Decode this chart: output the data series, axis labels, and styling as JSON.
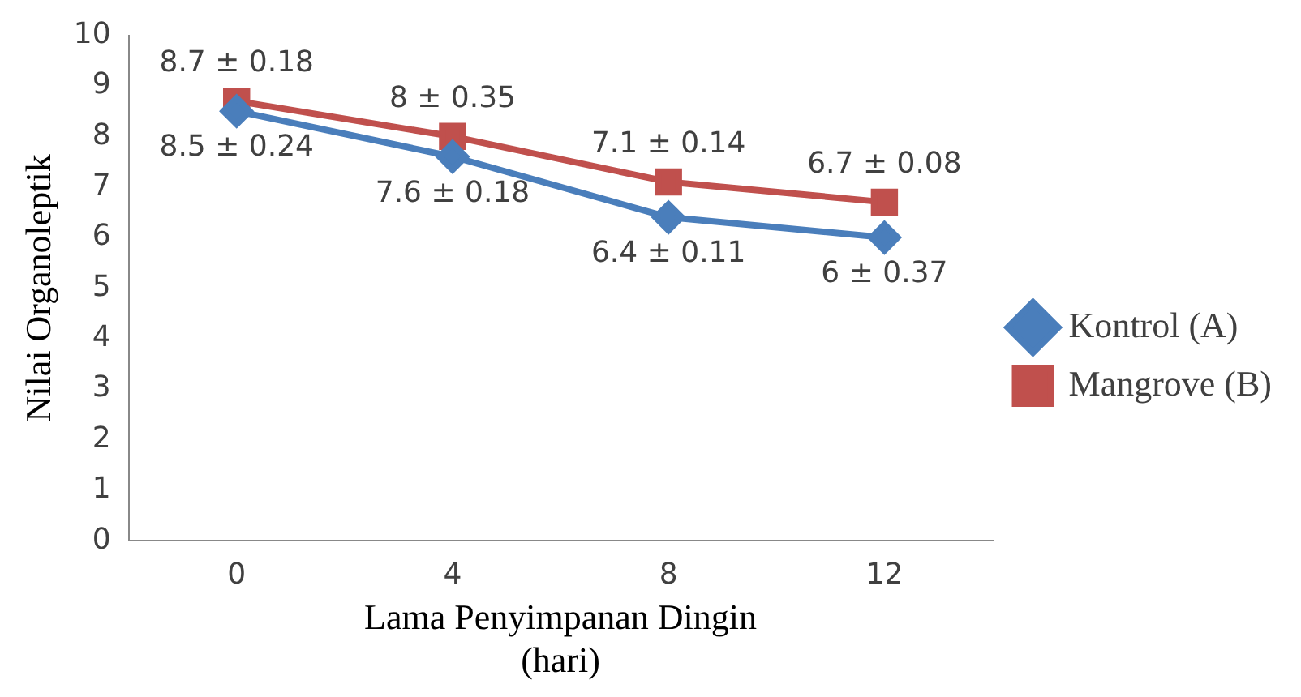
{
  "chart_data": {
    "type": "line",
    "xlabel": "Lama Penyimpanan Dingin\n(hari)",
    "ylabel": "Nilai Organoleptik",
    "categories": [
      "0",
      "4",
      "8",
      "12"
    ],
    "series": [
      {
        "name": "Kontrol (A)",
        "color": "#4a7ebb",
        "marker": "diamond",
        "values": [
          8.5,
          7.6,
          6.4,
          6
        ],
        "value_labels": [
          "8.5 ± 0.24",
          "7.6 ± 0.18",
          "6.4 ± 0.11",
          "6 ± 0.37"
        ]
      },
      {
        "name": "Mangrove (B)",
        "color": "#c0504d",
        "marker": "square",
        "values": [
          8.7,
          8,
          7.1,
          6.7
        ],
        "value_labels": [
          "8.7 ± 0.18",
          "8 ± 0.35",
          "7.1 ± 0.14",
          "6.7 ± 0.08"
        ]
      }
    ],
    "ylim": [
      0,
      10
    ],
    "yticks": [
      0,
      1,
      2,
      3,
      4,
      5,
      6,
      7,
      8,
      9,
      10
    ],
    "grid": false,
    "legend": "right",
    "line_style": "solid"
  }
}
